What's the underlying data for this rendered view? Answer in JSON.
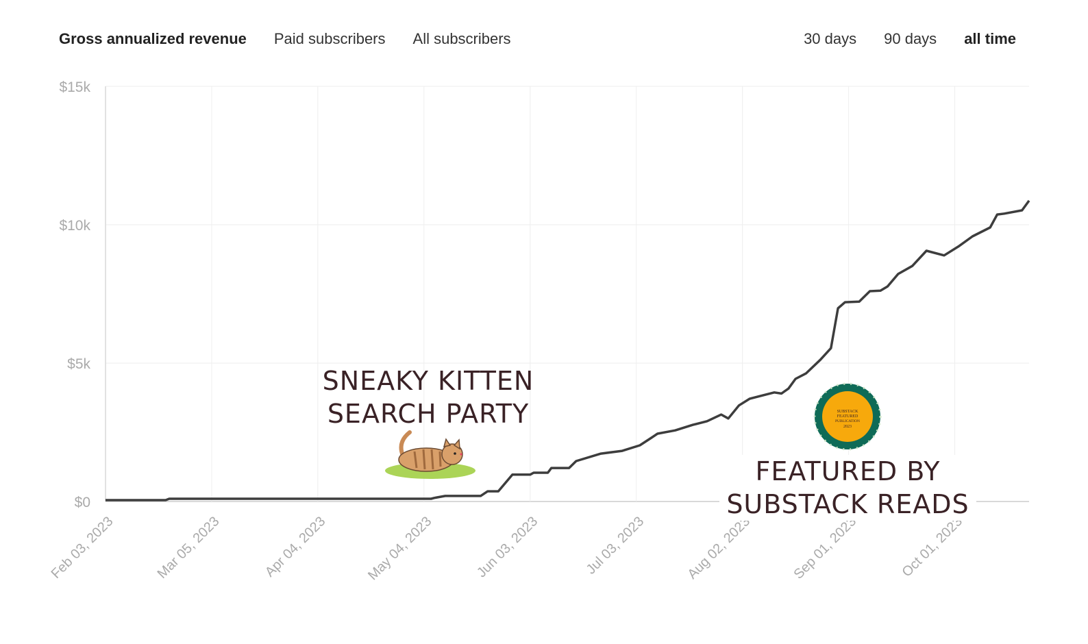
{
  "metric_tabs": [
    {
      "label": "Gross annualized revenue",
      "active": true
    },
    {
      "label": "Paid subscribers",
      "active": false
    },
    {
      "label": "All subscribers",
      "active": false
    }
  ],
  "range_tabs": [
    {
      "label": "30 days",
      "active": false
    },
    {
      "label": "90 days",
      "active": false
    },
    {
      "label": "all time",
      "active": true
    }
  ],
  "annotations": {
    "kitten": {
      "line1": "SNEAKY KITTEN",
      "line2": "SEARCH PARTY",
      "icon": "kitten-illustration"
    },
    "featured": {
      "line1": "FEATURED BY",
      "line2": "SUBSTACK READS",
      "icon": "substack-featured-badge",
      "badge_text": [
        "SUBSTACK",
        "FEATURED",
        "PUBLICATION",
        "2023"
      ]
    }
  },
  "colors": {
    "line": "#3d3d3d",
    "grid": "#eeeeee",
    "axis_text": "#aaaaaa",
    "annotation": "#3a2226",
    "badge_fill": "#f7a90c",
    "badge_ring": "#0f6b57"
  },
  "chart_data": {
    "type": "line",
    "title": "",
    "xlabel": "",
    "ylabel": "",
    "xlim": [
      "2023-02-03",
      "2023-10-22"
    ],
    "ylim": [
      0,
      15000
    ],
    "grid": true,
    "y_ticks": [
      {
        "value": 0,
        "label": "$0"
      },
      {
        "value": 5000,
        "label": "$5k"
      },
      {
        "value": 10000,
        "label": "$10k"
      },
      {
        "value": 15000,
        "label": "$15k"
      }
    ],
    "x_ticks": [
      {
        "date": "2023-02-03",
        "label": "Feb 03, 2023"
      },
      {
        "date": "2023-03-05",
        "label": "Mar 05, 2023"
      },
      {
        "date": "2023-04-04",
        "label": "Apr 04, 2023"
      },
      {
        "date": "2023-05-04",
        "label": "May 04, 2023"
      },
      {
        "date": "2023-06-03",
        "label": "Jun 03, 2023"
      },
      {
        "date": "2023-07-03",
        "label": "Jul 03, 2023"
      },
      {
        "date": "2023-08-02",
        "label": "Aug 02, 2023"
      },
      {
        "date": "2023-09-01",
        "label": "Sep 01, 2023"
      },
      {
        "date": "2023-10-01",
        "label": "Oct 01, 2023"
      }
    ],
    "series": [
      {
        "points": [
          [
            "2023-02-03",
            50
          ],
          [
            "2023-02-20",
            50
          ],
          [
            "2023-02-21",
            100
          ],
          [
            "2023-05-06",
            100
          ],
          [
            "2023-05-07",
            130
          ],
          [
            "2023-05-10",
            200
          ],
          [
            "2023-05-20",
            200
          ],
          [
            "2023-05-22",
            370
          ],
          [
            "2023-05-25",
            370
          ],
          [
            "2023-05-29",
            970
          ],
          [
            "2023-06-03",
            970
          ],
          [
            "2023-06-04",
            1040
          ],
          [
            "2023-06-08",
            1040
          ],
          [
            "2023-06-09",
            1210
          ],
          [
            "2023-06-14",
            1210
          ],
          [
            "2023-06-16",
            1460
          ],
          [
            "2023-06-23",
            1730
          ],
          [
            "2023-06-29",
            1830
          ],
          [
            "2023-07-04",
            2030
          ],
          [
            "2023-07-07",
            2280
          ],
          [
            "2023-07-09",
            2450
          ],
          [
            "2023-07-14",
            2570
          ],
          [
            "2023-07-19",
            2770
          ],
          [
            "2023-07-23",
            2900
          ],
          [
            "2023-07-27",
            3140
          ],
          [
            "2023-07-29",
            3000
          ],
          [
            "2023-08-01",
            3470
          ],
          [
            "2023-08-04",
            3710
          ],
          [
            "2023-08-07",
            3810
          ],
          [
            "2023-08-11",
            3940
          ],
          [
            "2023-08-13",
            3900
          ],
          [
            "2023-08-15",
            4080
          ],
          [
            "2023-08-17",
            4430
          ],
          [
            "2023-08-20",
            4630
          ],
          [
            "2023-08-24",
            5120
          ],
          [
            "2023-08-27",
            5540
          ],
          [
            "2023-08-29",
            6980
          ],
          [
            "2023-08-31",
            7200
          ],
          [
            "2023-09-04",
            7220
          ],
          [
            "2023-09-07",
            7600
          ],
          [
            "2023-09-10",
            7620
          ],
          [
            "2023-09-12",
            7770
          ],
          [
            "2023-09-15",
            8220
          ],
          [
            "2023-09-19",
            8510
          ],
          [
            "2023-09-23",
            9060
          ],
          [
            "2023-09-28",
            8890
          ],
          [
            "2023-10-02",
            9210
          ],
          [
            "2023-10-06",
            9580
          ],
          [
            "2023-10-11",
            9900
          ],
          [
            "2023-10-13",
            10370
          ],
          [
            "2023-10-15",
            10400
          ],
          [
            "2023-10-20",
            10520
          ],
          [
            "2023-10-22",
            10870
          ]
        ]
      }
    ]
  }
}
